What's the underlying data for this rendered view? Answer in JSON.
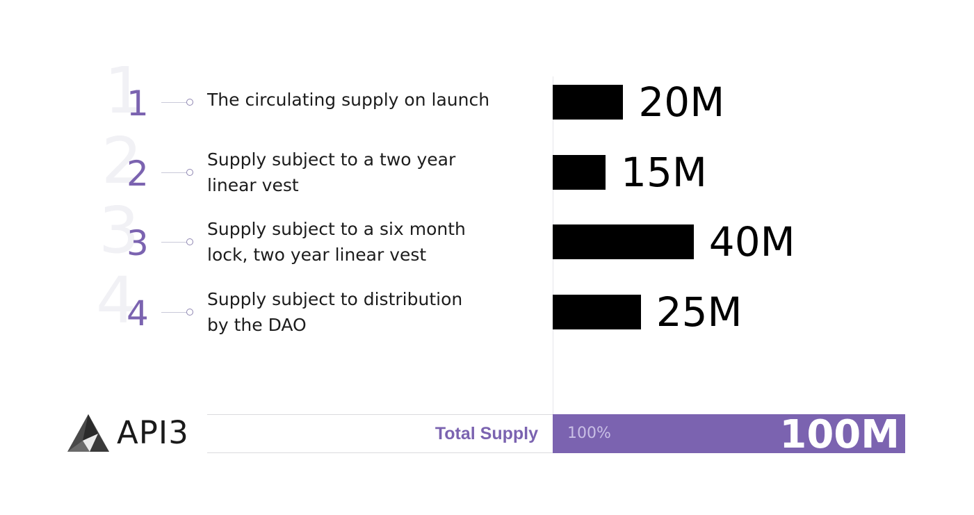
{
  "chart_data": {
    "type": "bar",
    "orientation": "horizontal",
    "categories": [
      "The circulating supply on launch",
      "Supply subject to a two year\nlinear vest",
      "Supply subject to a six month\nlock, two year linear vest",
      "Supply subject to distribution\nby the DAO"
    ],
    "row_numbers": [
      "1",
      "2",
      "3",
      "4"
    ],
    "values": [
      20,
      15,
      40,
      25
    ],
    "value_labels": [
      "20M",
      "15M",
      "40M",
      "25M"
    ],
    "unit": "M",
    "xlim": [
      0,
      100
    ],
    "grid": false,
    "bar_color": "#000000",
    "accent_color": "#7b63b0",
    "total": {
      "label": "Total Supply",
      "percent": "100%",
      "value": 100,
      "value_label": "100M"
    }
  },
  "brand": {
    "name": "API3",
    "logo_icon": "api3-triangle-logo-icon"
  }
}
